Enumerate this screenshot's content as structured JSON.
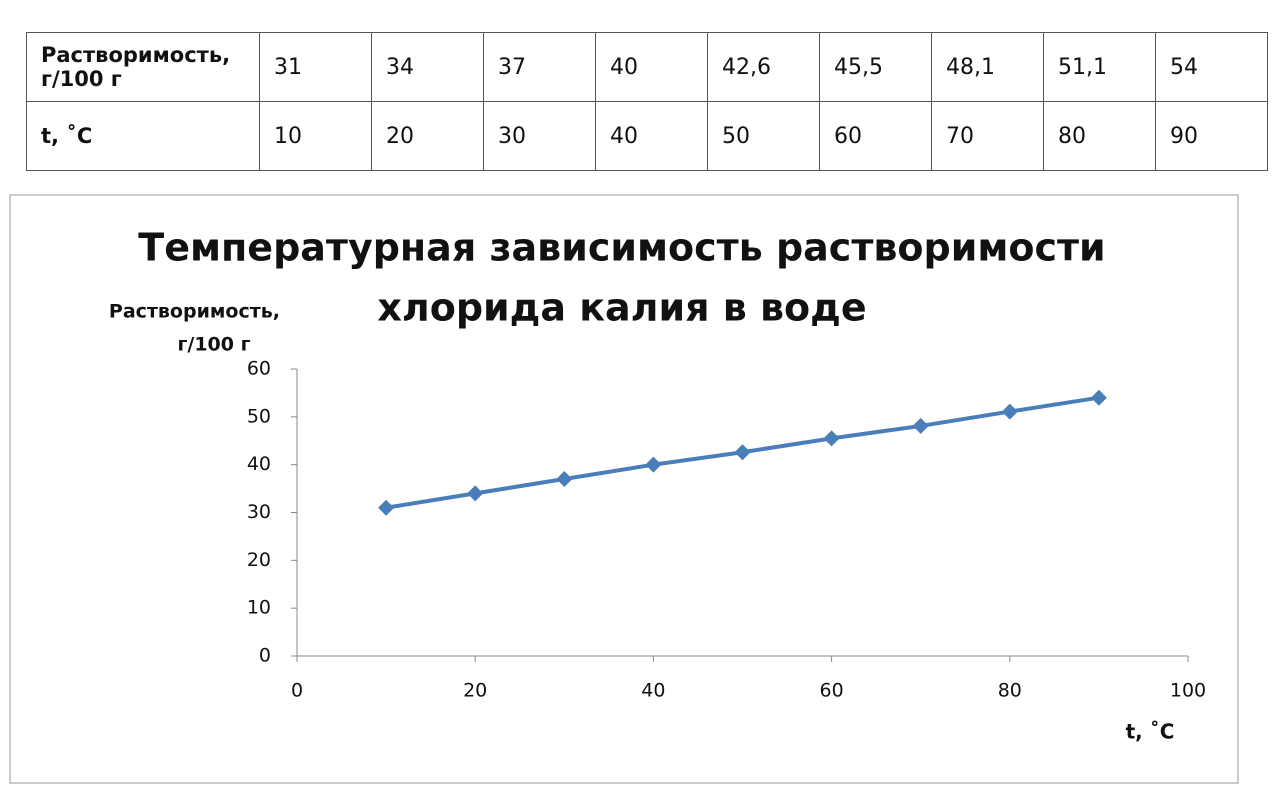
{
  "table": {
    "rows": [
      [
        "Растворимость, г/100 г",
        "31",
        "34",
        "37",
        "40",
        "42,6",
        "45,5",
        "48,1",
        "51,1",
        "54"
      ],
      [
        "t, ˚C",
        "10",
        "20",
        "30",
        "40",
        "50",
        "60",
        "70",
        "80",
        "90"
      ]
    ]
  },
  "chart_data": {
    "type": "line",
    "title": [
      "Температурная зависимость растворимости",
      "хлорида калия в воде"
    ],
    "y_label": [
      "Растворимость,",
      "г/100 г"
    ],
    "x_label": "t, ˚C",
    "x": [
      10,
      20,
      30,
      40,
      50,
      60,
      70,
      80,
      90
    ],
    "series": [
      {
        "color": "#4a7ebb",
        "values": [
          31,
          34,
          37,
          40,
          42.6,
          45.5,
          48.1,
          51.1,
          54
        ]
      }
    ],
    "xlim": [
      0,
      100
    ],
    "xticks": [
      0,
      20,
      40,
      60,
      80,
      100
    ],
    "ylim": [
      0,
      60
    ],
    "yticks": [
      0,
      10,
      20,
      30,
      40,
      50,
      60
    ],
    "marker": "diamond"
  }
}
